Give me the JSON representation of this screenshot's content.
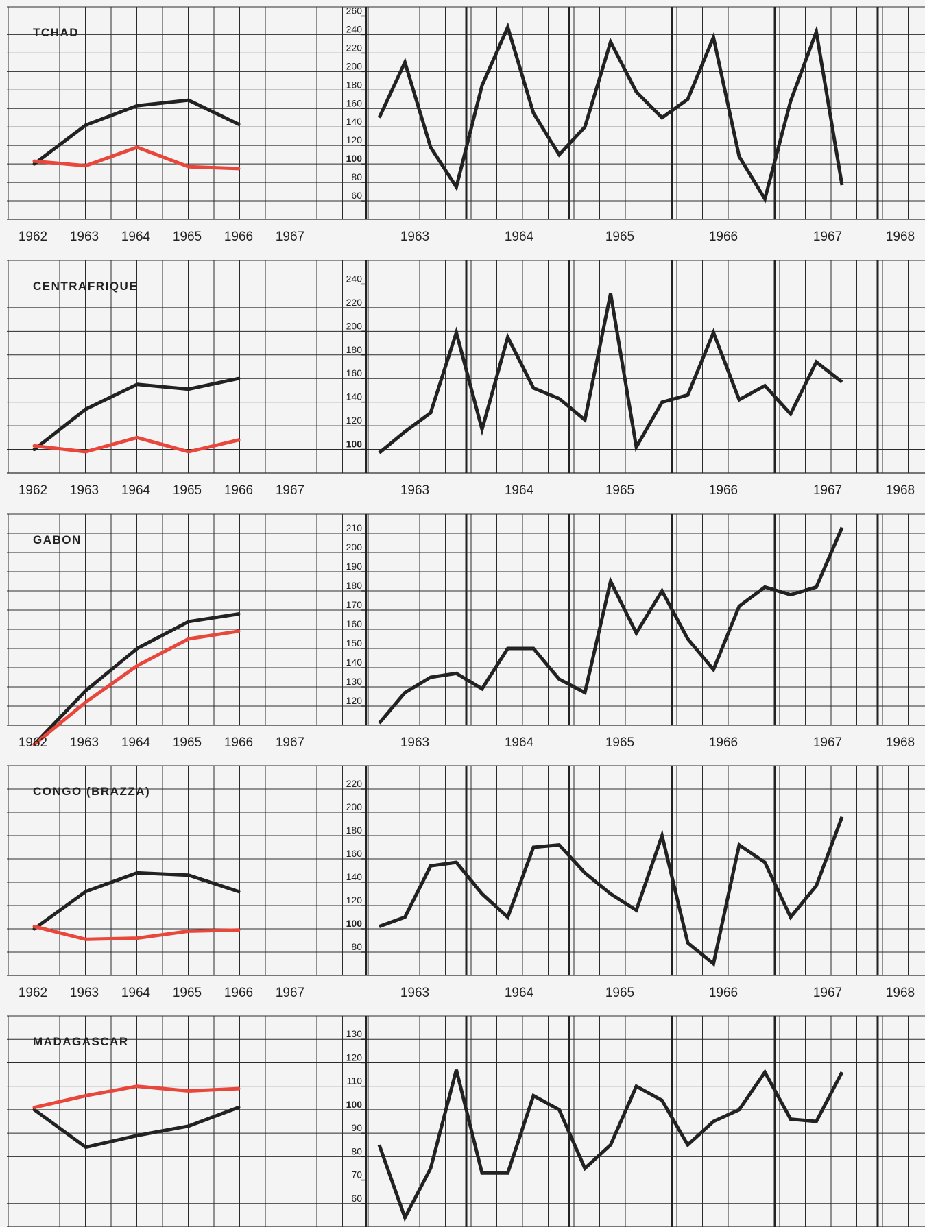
{
  "colors": {
    "background": "#f4f4f4",
    "grid": "#2b2b2b",
    "ink": "#222222",
    "red": "#e8473b"
  },
  "years_left": [
    "1962",
    "1963",
    "1964",
    "1965",
    "1966",
    "1967"
  ],
  "years_right": [
    "1963",
    "1964",
    "1965",
    "1966",
    "1967",
    "1968"
  ],
  "chart_data": [
    {
      "type": "line",
      "title": "TCHAD",
      "annual": {
        "x": [
          "1962",
          "1963",
          "1964",
          "1965",
          "1966"
        ],
        "series": [
          {
            "color": "#222222",
            "values": [
              100,
              142,
              163,
              169,
              143
            ]
          },
          {
            "color": "#e8473b",
            "values": [
              103,
              98,
              118,
              97,
              95
            ]
          }
        ],
        "ylim": [
          40,
          270
        ]
      },
      "quarterly": {
        "yticks": [
          "60",
          "80",
          "100",
          "120",
          "140",
          "160",
          "180",
          "200",
          "220",
          "240",
          "260"
        ],
        "ylim": [
          40,
          270
        ],
        "x": [
          0,
          1,
          2,
          3,
          4,
          5,
          6,
          7,
          8,
          9,
          10,
          11,
          12,
          13,
          14,
          15,
          16,
          17,
          18
        ],
        "values": [
          150,
          210,
          118,
          75,
          185,
          248,
          155,
          110,
          140,
          232,
          178,
          150,
          170,
          237,
          108,
          62,
          168,
          243,
          77
        ]
      }
    },
    {
      "type": "line",
      "title": "CENTRAFRIQUE",
      "annual": {
        "x": [
          "1962",
          "1963",
          "1964",
          "1965",
          "1966"
        ],
        "series": [
          {
            "color": "#222222",
            "values": [
              100,
              134,
              155,
              151,
              160
            ]
          },
          {
            "color": "#e8473b",
            "values": [
              103,
              98,
              110,
              98,
              108
            ]
          }
        ],
        "ylim": [
          80,
          260
        ]
      },
      "quarterly": {
        "yticks": [
          "100",
          "120",
          "140",
          "160",
          "180",
          "200",
          "220",
          "240"
        ],
        "ylim": [
          80,
          260
        ],
        "x": [
          0,
          1,
          2,
          3,
          4,
          5,
          6,
          7,
          8,
          9,
          10,
          11,
          12,
          13,
          14,
          15,
          16,
          17,
          18
        ],
        "values": [
          97,
          115,
          131,
          199,
          117,
          195,
          152,
          143,
          125,
          232,
          102,
          140,
          146,
          199,
          142,
          154,
          130,
          174,
          157
        ]
      }
    },
    {
      "type": "line",
      "title": "GABON",
      "annual": {
        "x": [
          "1962",
          "1963",
          "1964",
          "1965",
          "1966"
        ],
        "series": [
          {
            "color": "#222222",
            "values": [
              100,
              128,
              150,
              164,
              168
            ]
          },
          {
            "color": "#e8473b",
            "values": [
              100,
              122,
              141,
              155,
              159
            ]
          }
        ],
        "ylim": [
          110,
          220
        ]
      },
      "quarterly": {
        "yticks": [
          "120",
          "130",
          "140",
          "150",
          "160",
          "170",
          "180",
          "190",
          "200",
          "210"
        ],
        "ylim": [
          110,
          220
        ],
        "x": [
          0,
          1,
          2,
          3,
          4,
          5,
          6,
          7,
          8,
          9,
          10,
          11,
          12,
          13,
          14,
          15,
          16,
          17,
          18
        ],
        "values": [
          111,
          127,
          135,
          137,
          129,
          150,
          150,
          134,
          127,
          185,
          158,
          180,
          155,
          139,
          172,
          182,
          178,
          182,
          213
        ]
      }
    },
    {
      "type": "line",
      "title": "CONGO (BRAZZA)",
      "annual": {
        "x": [
          "1962",
          "1963",
          "1964",
          "1965",
          "1966"
        ],
        "series": [
          {
            "color": "#222222",
            "values": [
              100,
              132,
              148,
              146,
              132
            ]
          },
          {
            "color": "#e8473b",
            "values": [
              102,
              91,
              92,
              98,
              99
            ]
          }
        ],
        "ylim": [
          60,
          240
        ]
      },
      "quarterly": {
        "yticks": [
          "80",
          "100",
          "120",
          "140",
          "160",
          "180",
          "200",
          "220"
        ],
        "ylim": [
          60,
          240
        ],
        "x": [
          0,
          1,
          2,
          3,
          4,
          5,
          6,
          7,
          8,
          9,
          10,
          11,
          12,
          13,
          14,
          15,
          16,
          17,
          18
        ],
        "values": [
          102,
          110,
          154,
          157,
          130,
          110,
          170,
          172,
          148,
          130,
          116,
          180,
          88,
          70,
          172,
          157,
          110,
          137,
          196
        ]
      }
    },
    {
      "type": "line",
      "title": "MADAGASCAR",
      "annual": {
        "x": [
          "1962",
          "1963",
          "1964",
          "1965",
          "1966"
        ],
        "series": [
          {
            "color": "#222222",
            "values": [
              100,
              84,
              89,
              93,
              101
            ]
          },
          {
            "color": "#e8473b",
            "values": [
              101,
              106,
              110,
              108,
              109
            ]
          }
        ],
        "ylim": [
          50,
          140
        ]
      },
      "quarterly": {
        "yticks": [
          "60",
          "70",
          "80",
          "90",
          "100",
          "110",
          "120",
          "130"
        ],
        "ylim": [
          50,
          140
        ],
        "x": [
          0,
          1,
          2,
          3,
          4,
          5,
          6,
          7,
          8,
          9,
          10,
          11,
          12,
          13,
          14,
          15,
          16,
          17,
          18
        ],
        "values": [
          85,
          54,
          75,
          117,
          73,
          73,
          106,
          100,
          75,
          85,
          110,
          104,
          85,
          95,
          100,
          116,
          96,
          95,
          116
        ]
      }
    }
  ]
}
